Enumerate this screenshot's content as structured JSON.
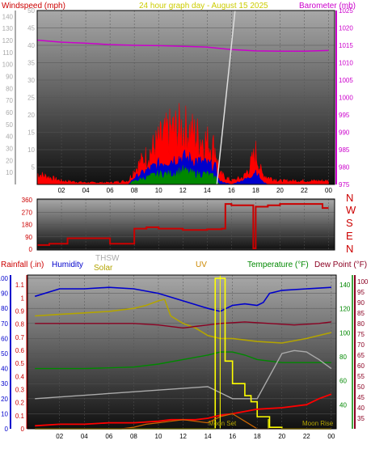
{
  "header": {
    "windspeed_label": "Windspeed (mph)",
    "graph_title": "24 hour graph day - August 15 2025",
    "barometer_label": "Barometer (mb)"
  },
  "colors": {
    "wind_gust": "#ff0000",
    "wind_avg": "#0000cc",
    "wind_low": "#008800",
    "barometer": "#cc00cc",
    "direction": "#cc0000",
    "temperature": "#008800",
    "dewpoint": "#8b0022",
    "humidity": "#0000cc",
    "solar": "#b3a400",
    "uv": "#ffff00",
    "thsw": "#aaaaaa",
    "rain": "#ff0000"
  },
  "chart_data": [
    {
      "type": "line",
      "title": "24 hour graph day - August 15 2025",
      "ylabel": "Windspeed (mph)",
      "ylabel_right": "Barometer (mb)",
      "ylim": [
        0,
        50
      ],
      "ylim_right": [
        975,
        1025
      ],
      "x_ticks": [
        "02",
        "04",
        "06",
        "08",
        "10",
        "12",
        "14",
        "16",
        "18",
        "20",
        "22",
        "00"
      ],
      "y_ticks_left": [
        "5",
        "10",
        "15",
        "20",
        "25",
        "30",
        "35",
        "40",
        "45",
        "50"
      ],
      "y_ticks_left_outer": [
        "10",
        "20",
        "30",
        "40",
        "50",
        "60",
        "70",
        "80",
        "90",
        "100",
        "110",
        "120",
        "130",
        "140"
      ],
      "y_ticks_right": [
        "975",
        "980",
        "985",
        "990",
        "995",
        "1000",
        "1005",
        "1010",
        "1015",
        "1020",
        "1025"
      ],
      "series": [
        {
          "key": "gust",
          "x": [
            0,
            2,
            4,
            6,
            7.5,
            8,
            9,
            10,
            11,
            12,
            13,
            14,
            14.7,
            15,
            16,
            17,
            17.5,
            18,
            18.5,
            19,
            20,
            22,
            24
          ],
          "values": [
            3,
            1,
            0.5,
            0.5,
            1,
            4,
            8,
            12,
            15,
            16,
            14,
            12,
            10,
            3,
            1,
            2,
            5,
            9,
            3,
            2,
            1,
            1,
            1
          ]
        },
        {
          "key": "avg",
          "x": [
            0,
            7.5,
            8,
            9,
            10,
            11,
            12,
            13,
            14,
            14.7,
            15,
            16,
            17.5,
            18,
            18.5,
            19,
            24
          ],
          "values": [
            0,
            0,
            2,
            4,
            6,
            7,
            8,
            7,
            6,
            5,
            1,
            0,
            2,
            4,
            1,
            0,
            0
          ]
        },
        {
          "key": "low",
          "x": [
            0,
            7.5,
            8,
            9,
            10,
            11,
            12,
            13,
            14,
            14.7,
            15,
            16,
            24
          ],
          "values": [
            0,
            0,
            1,
            2,
            3,
            3,
            4,
            3,
            3,
            2,
            0,
            0,
            0
          ]
        },
        {
          "key": "barometer",
          "x": [
            0,
            2,
            4,
            6,
            8,
            10,
            12,
            14,
            16,
            18,
            20,
            22,
            24
          ],
          "values": [
            1016.5,
            1015.9,
            1015.6,
            1015.2,
            1015.0,
            1014.9,
            1014.7,
            1014.5,
            1013.8,
            1013.4,
            1013.3,
            1013.3,
            1013.5
          ]
        }
      ]
    },
    {
      "type": "line",
      "ylabel": "Wind direction",
      "ylim": [
        0,
        360
      ],
      "y_ticks": [
        "0",
        "90",
        "180",
        "270",
        "360"
      ],
      "compass": [
        "N",
        "W",
        "S",
        "E",
        "N"
      ],
      "x": [
        0,
        1,
        1.5,
        2.5,
        3,
        5.5,
        6,
        7.5,
        8,
        9,
        10,
        12,
        14,
        15.2,
        15.5,
        16,
        16.5,
        17,
        17.5,
        17.8,
        18,
        19,
        20,
        21,
        22,
        23,
        23.5,
        24
      ],
      "values": [
        30,
        40,
        40,
        80,
        80,
        80,
        40,
        40,
        150,
        160,
        150,
        140,
        145,
        150,
        330,
        320,
        320,
        320,
        320,
        5,
        310,
        320,
        330,
        330,
        330,
        330,
        300,
        300
      ]
    },
    {
      "type": "line",
      "ylabel_left_1": "Rainfall (.in)",
      "ylabel_left_2": "Humidity",
      "label_thsw": "THSW",
      "label_solar": "Solar",
      "label_uv": "UV",
      "label_temperature": "Temperature (°F)",
      "label_dewpoint": "Dew Point (°F)",
      "label_moonset": "Moon Set",
      "label_moonrise": "Moon Rise",
      "y_ticks_rain": [
        "0",
        "0.1",
        "0.2",
        "0.3",
        "0.4",
        "0.5",
        "0.6",
        "0.7",
        "0.8",
        "0.9",
        "1",
        "1.1"
      ],
      "y_ticks_humidity": [
        "0",
        "10",
        "20",
        "30",
        "40",
        "50",
        "60",
        "70",
        "80",
        "90",
        "100"
      ],
      "y_ticks_temp": [
        "40",
        "60",
        "80",
        "100",
        "120",
        "140"
      ],
      "y_ticks_temp_outer": [
        "35",
        "40",
        "45",
        "50",
        "55",
        "60",
        "65",
        "70",
        "75",
        "80",
        "85",
        "90",
        "95",
        "100"
      ],
      "series": [
        {
          "key": "humidity",
          "x": [
            0,
            2,
            4,
            6,
            8,
            10,
            12,
            14,
            15,
            15.5,
            16,
            17,
            18,
            18.5,
            19,
            20,
            22,
            24
          ],
          "values": [
            88,
            93,
            93,
            94,
            93,
            90,
            85,
            80,
            78,
            80,
            82,
            83,
            82,
            84,
            90,
            92,
            93,
            94
          ]
        },
        {
          "key": "solar",
          "x": [
            0,
            2,
            4,
            6,
            8,
            9,
            10,
            10.5,
            11,
            12,
            13,
            14,
            15,
            16,
            18,
            20,
            22,
            24
          ],
          "values": [
            75,
            76,
            77,
            78,
            80,
            82,
            85,
            86,
            75,
            70,
            67,
            62,
            60,
            60,
            58,
            57,
            60,
            64
          ]
        },
        {
          "key": "dewpoint",
          "x": [
            0,
            4,
            8,
            10,
            12,
            13,
            15,
            17,
            19,
            21,
            23,
            24
          ],
          "values": [
            70,
            70,
            70,
            69,
            67,
            68,
            70,
            71,
            70,
            69,
            70,
            71
          ]
        },
        {
          "key": "temperature",
          "x": [
            0,
            4,
            8,
            10,
            12,
            14,
            15,
            16,
            17,
            18,
            19,
            20,
            22,
            24
          ],
          "values": [
            40,
            40,
            41,
            43,
            46,
            49,
            51,
            51,
            49,
            46,
            45,
            44,
            44,
            44
          ]
        },
        {
          "key": "thsw",
          "x": [
            0,
            14,
            16,
            18,
            20,
            21,
            22,
            23,
            24
          ],
          "values": [
            20,
            28,
            20,
            20,
            50,
            52,
            51,
            46,
            40
          ]
        },
        {
          "key": "uv",
          "x": [
            0,
            14.5,
            14.6,
            15.3,
            15.4,
            16,
            17,
            17.5,
            18,
            19,
            20,
            24
          ],
          "values": [
            0,
            0,
            100,
            100,
            45,
            30,
            22,
            18,
            8,
            1,
            0,
            0
          ]
        },
        {
          "key": "rain_rate",
          "x": [
            0,
            2,
            4,
            6,
            8,
            10,
            11,
            12,
            13,
            14,
            15,
            16,
            18,
            20,
            22,
            23,
            24
          ],
          "values": [
            2,
            3,
            3,
            4,
            4,
            5,
            6,
            6,
            6,
            7,
            9,
            10,
            13,
            14,
            16,
            20,
            23
          ]
        },
        {
          "key": "solar_rad",
          "x": [
            0,
            7,
            8,
            9,
            10,
            11,
            12,
            13,
            14,
            15,
            16,
            17,
            18,
            24
          ],
          "values": [
            0,
            0,
            1,
            3,
            4,
            5,
            6,
            5,
            4,
            8,
            10,
            5,
            0,
            0
          ]
        }
      ]
    }
  ]
}
